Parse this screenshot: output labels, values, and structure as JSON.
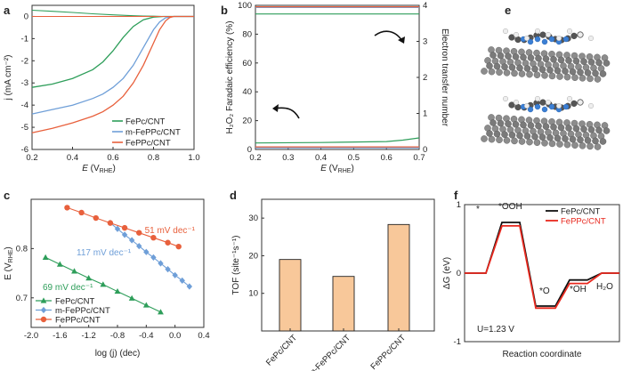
{
  "colors": {
    "fepc": "#2e9e5a",
    "mfeppc": "#6f9fd8",
    "feppc": "#e8603c",
    "bar": "#f8c89a",
    "black": "#111111",
    "red": "#e8281e"
  },
  "panels": {
    "a": "a",
    "b": "b",
    "c": "c",
    "d": "d",
    "e": "e",
    "f": "f"
  },
  "chart_data": [
    {
      "panel": "a",
      "type": "line",
      "xlabel": "E (V_RHE)",
      "ylabel": "j (mA cm^-2)",
      "xlim": [
        0.2,
        1.0
      ],
      "ylim": [
        -6,
        0.5
      ],
      "xticks": [
        "0.2",
        "0.4",
        "0.6",
        "0.8",
        "1.0"
      ],
      "yticks": [
        "0",
        "-1",
        "-2",
        "-3",
        "-4",
        "-5",
        "-6"
      ],
      "legend": [
        "FePc/CNT",
        "m-FePPc/CNT",
        "FePPc/CNT"
      ],
      "series": [
        {
          "name": "FePc/CNT",
          "color": "#2e9e5a",
          "ring_x": [
            0.2,
            0.3,
            0.4,
            0.5,
            0.6,
            0.65,
            0.7,
            0.75,
            0.8,
            0.85,
            0.9,
            1.0
          ],
          "ring_y": [
            0.28,
            0.23,
            0.18,
            0.12,
            0.07,
            0.05,
            0.03,
            0.02,
            0.01,
            0.0,
            0.0,
            0.0
          ],
          "x": [
            0.2,
            0.3,
            0.4,
            0.5,
            0.55,
            0.6,
            0.65,
            0.7,
            0.75,
            0.8,
            0.85,
            0.9,
            1.0
          ],
          "y": [
            -3.2,
            -3.05,
            -2.8,
            -2.4,
            -2.05,
            -1.55,
            -0.95,
            -0.45,
            -0.15,
            -0.03,
            0.0,
            0.0,
            0.0
          ]
        },
        {
          "name": "m-FePPc/CNT",
          "color": "#6f9fd8",
          "ring_x": [
            0.2,
            0.4,
            0.6,
            0.8,
            1.0
          ],
          "ring_y": [
            0.0,
            0.0,
            0.0,
            0.0,
            0.0
          ],
          "x": [
            0.2,
            0.3,
            0.4,
            0.5,
            0.55,
            0.6,
            0.65,
            0.7,
            0.75,
            0.8,
            0.83,
            0.86,
            0.9,
            1.0
          ],
          "y": [
            -4.4,
            -4.2,
            -4.0,
            -3.7,
            -3.5,
            -3.2,
            -2.8,
            -2.2,
            -1.4,
            -0.6,
            -0.25,
            -0.06,
            0.0,
            0.0
          ]
        },
        {
          "name": "FePPc/CNT",
          "color": "#e8603c",
          "ring_x": [
            0.2,
            0.4,
            0.6,
            0.8,
            1.0
          ],
          "ring_y": [
            0.0,
            0.0,
            0.0,
            0.0,
            0.0
          ],
          "x": [
            0.2,
            0.3,
            0.4,
            0.5,
            0.55,
            0.6,
            0.65,
            0.7,
            0.75,
            0.8,
            0.83,
            0.86,
            0.88,
            0.9,
            1.0
          ],
          "y": [
            -5.25,
            -5.05,
            -4.8,
            -4.5,
            -4.3,
            -4.0,
            -3.6,
            -3.0,
            -2.2,
            -1.2,
            -0.6,
            -0.2,
            -0.05,
            0.0,
            0.0
          ]
        }
      ]
    },
    {
      "panel": "b",
      "type": "line",
      "xlabel": "E (V_RHE)",
      "ylabel": "H2O2 Faradaic efficiency (%)",
      "ylabel_right": "Electron transfer number",
      "xlim": [
        0.2,
        0.7
      ],
      "ylim": [
        0,
        100
      ],
      "ylim_right": [
        0,
        4
      ],
      "xticks": [
        "0.2",
        "0.3",
        "0.4",
        "0.5",
        "0.6",
        "0.7"
      ],
      "yticks": [
        "0",
        "20",
        "40",
        "60",
        "80",
        "100"
      ],
      "yticks_right": [
        "0",
        "1",
        "2",
        "3",
        "4"
      ],
      "series": [
        {
          "name": "FePc/CNT efficiency",
          "color": "#2e9e5a",
          "x": [
            0.2,
            0.4,
            0.6,
            0.65,
            0.7
          ],
          "y": [
            4.5,
            4.8,
            5.5,
            6.5,
            8.0
          ]
        },
        {
          "name": "m-FePPc/CNT efficiency",
          "color": "#6f9fd8",
          "x": [
            0.2,
            0.7
          ],
          "y": [
            1.2,
            1.2
          ]
        },
        {
          "name": "FePPc/CNT efficiency",
          "color": "#e8603c",
          "x": [
            0.2,
            0.7
          ],
          "y": [
            1.8,
            1.8
          ]
        },
        {
          "name": "FePc/CNT n",
          "color": "#2e9e5a",
          "x": [
            0.2,
            0.7
          ],
          "n": [
            3.76,
            3.76
          ]
        },
        {
          "name": "m-FePPc/CNT n",
          "color": "#6f9fd8",
          "x": [
            0.2,
            0.7
          ],
          "n": [
            3.94,
            3.94
          ]
        },
        {
          "name": "FePPc/CNT n",
          "color": "#e8603c",
          "x": [
            0.2,
            0.7
          ],
          "n": [
            3.96,
            3.96
          ]
        }
      ]
    },
    {
      "panel": "c",
      "type": "scatter",
      "xlabel": "log (j) (dec)",
      "ylabel": "E (V_RHE)",
      "xlim": [
        -2.0,
        0.4
      ],
      "ylim": [
        0.64,
        0.9
      ],
      "xticks": [
        "-2.0",
        "-1.6",
        "-1.2",
        "-0.8",
        "-0.4",
        "0.0",
        "0.4"
      ],
      "yticks": [
        "0.7",
        "0.8"
      ],
      "legend": [
        "FePc/CNT",
        "m-FePPc/CNT",
        "FePPc/CNT"
      ],
      "annotations": [
        "51 mV dec-1",
        "117 mV dec-1",
        "69 mV dec-1"
      ],
      "series": [
        {
          "name": "FePc/CNT",
          "color": "#2e9e5a",
          "marker": "triangle",
          "x": [
            -1.8,
            -1.6,
            -1.4,
            -1.2,
            -1.0,
            -0.8,
            -0.6,
            -0.4,
            -0.2
          ],
          "y": [
            0.782,
            0.768,
            0.754,
            0.74,
            0.727,
            0.713,
            0.699,
            0.685,
            0.671
          ]
        },
        {
          "name": "m-FePPc/CNT",
          "color": "#6f9fd8",
          "marker": "diamond",
          "x": [
            -0.9,
            -0.8,
            -0.7,
            -0.6,
            -0.5,
            -0.4,
            -0.3,
            -0.2,
            -0.1,
            0.0,
            0.1,
            0.2
          ],
          "y": [
            0.852,
            0.84,
            0.828,
            0.817,
            0.805,
            0.793,
            0.782,
            0.77,
            0.758,
            0.746,
            0.735,
            0.723
          ]
        },
        {
          "name": "FePPc/CNT",
          "color": "#e8603c",
          "marker": "circle",
          "x": [
            -1.5,
            -1.3,
            -1.1,
            -0.9,
            -0.7,
            -0.5,
            -0.3,
            -0.1,
            0.05
          ],
          "y": [
            0.883,
            0.873,
            0.862,
            0.852,
            0.842,
            0.832,
            0.822,
            0.812,
            0.804
          ]
        }
      ]
    },
    {
      "panel": "d",
      "type": "bar",
      "xlabel": "",
      "ylabel": "TOF (site^-1 s^-1)",
      "ylim": [
        0,
        35
      ],
      "yticks": [
        "10",
        "20",
        "30"
      ],
      "categories": [
        "FePc/CNT",
        "m-FePPc/CNT",
        "FePPc/CNT"
      ],
      "values": [
        19.0,
        14.5,
        28.3
      ]
    },
    {
      "panel": "f",
      "type": "line",
      "xlabel": "Reaction coordinate",
      "ylabel": "ΔG (eV)",
      "ylim": [
        -1,
        1
      ],
      "yticks": [
        "1",
        "0",
        "-1"
      ],
      "steps": [
        "*",
        "*OOH",
        "*O",
        "*OH",
        "H2O"
      ],
      "legend": [
        "FePc/CNT",
        "FePPc/CNT"
      ],
      "annotation": "U=1.23 V",
      "series": [
        {
          "name": "FePc/CNT",
          "color": "#111111",
          "values": [
            0.0,
            0.74,
            -0.48,
            -0.1,
            0.0
          ]
        },
        {
          "name": "FePPc/CNT",
          "color": "#e8281e",
          "values": [
            0.0,
            0.69,
            -0.51,
            -0.15,
            0.0
          ]
        }
      ]
    }
  ],
  "text": {
    "a_xlabel_main": "E",
    "a_xlabel_sub": "RHE",
    "a_ylabel": "j (mA cm⁻²)",
    "b_ylabel": "H₂O₂ Faradaic efficiency (%)",
    "b_ylabel_right": "Electron transfer number",
    "c_ylabel": "E (V",
    "c_ylabel_sub": "RHE",
    "c_xlabel": "log (j) (dec)",
    "d_ylabel": "TOF (site⁻¹s⁻¹)",
    "f_ylabel": "ΔG (eV)",
    "f_xlabel": "Reaction coordinate",
    "c_ann_red": "51 mV dec⁻¹",
    "c_ann_blue": "117 mV dec⁻¹",
    "c_ann_green": "69 mV dec⁻¹",
    "f_label_star": "*",
    "f_label_ooh": "*OOH",
    "f_label_o": "*O",
    "f_label_oh": "*OH",
    "f_label_h2o": "H₂O",
    "f_annotation": "U=1.23 V"
  }
}
